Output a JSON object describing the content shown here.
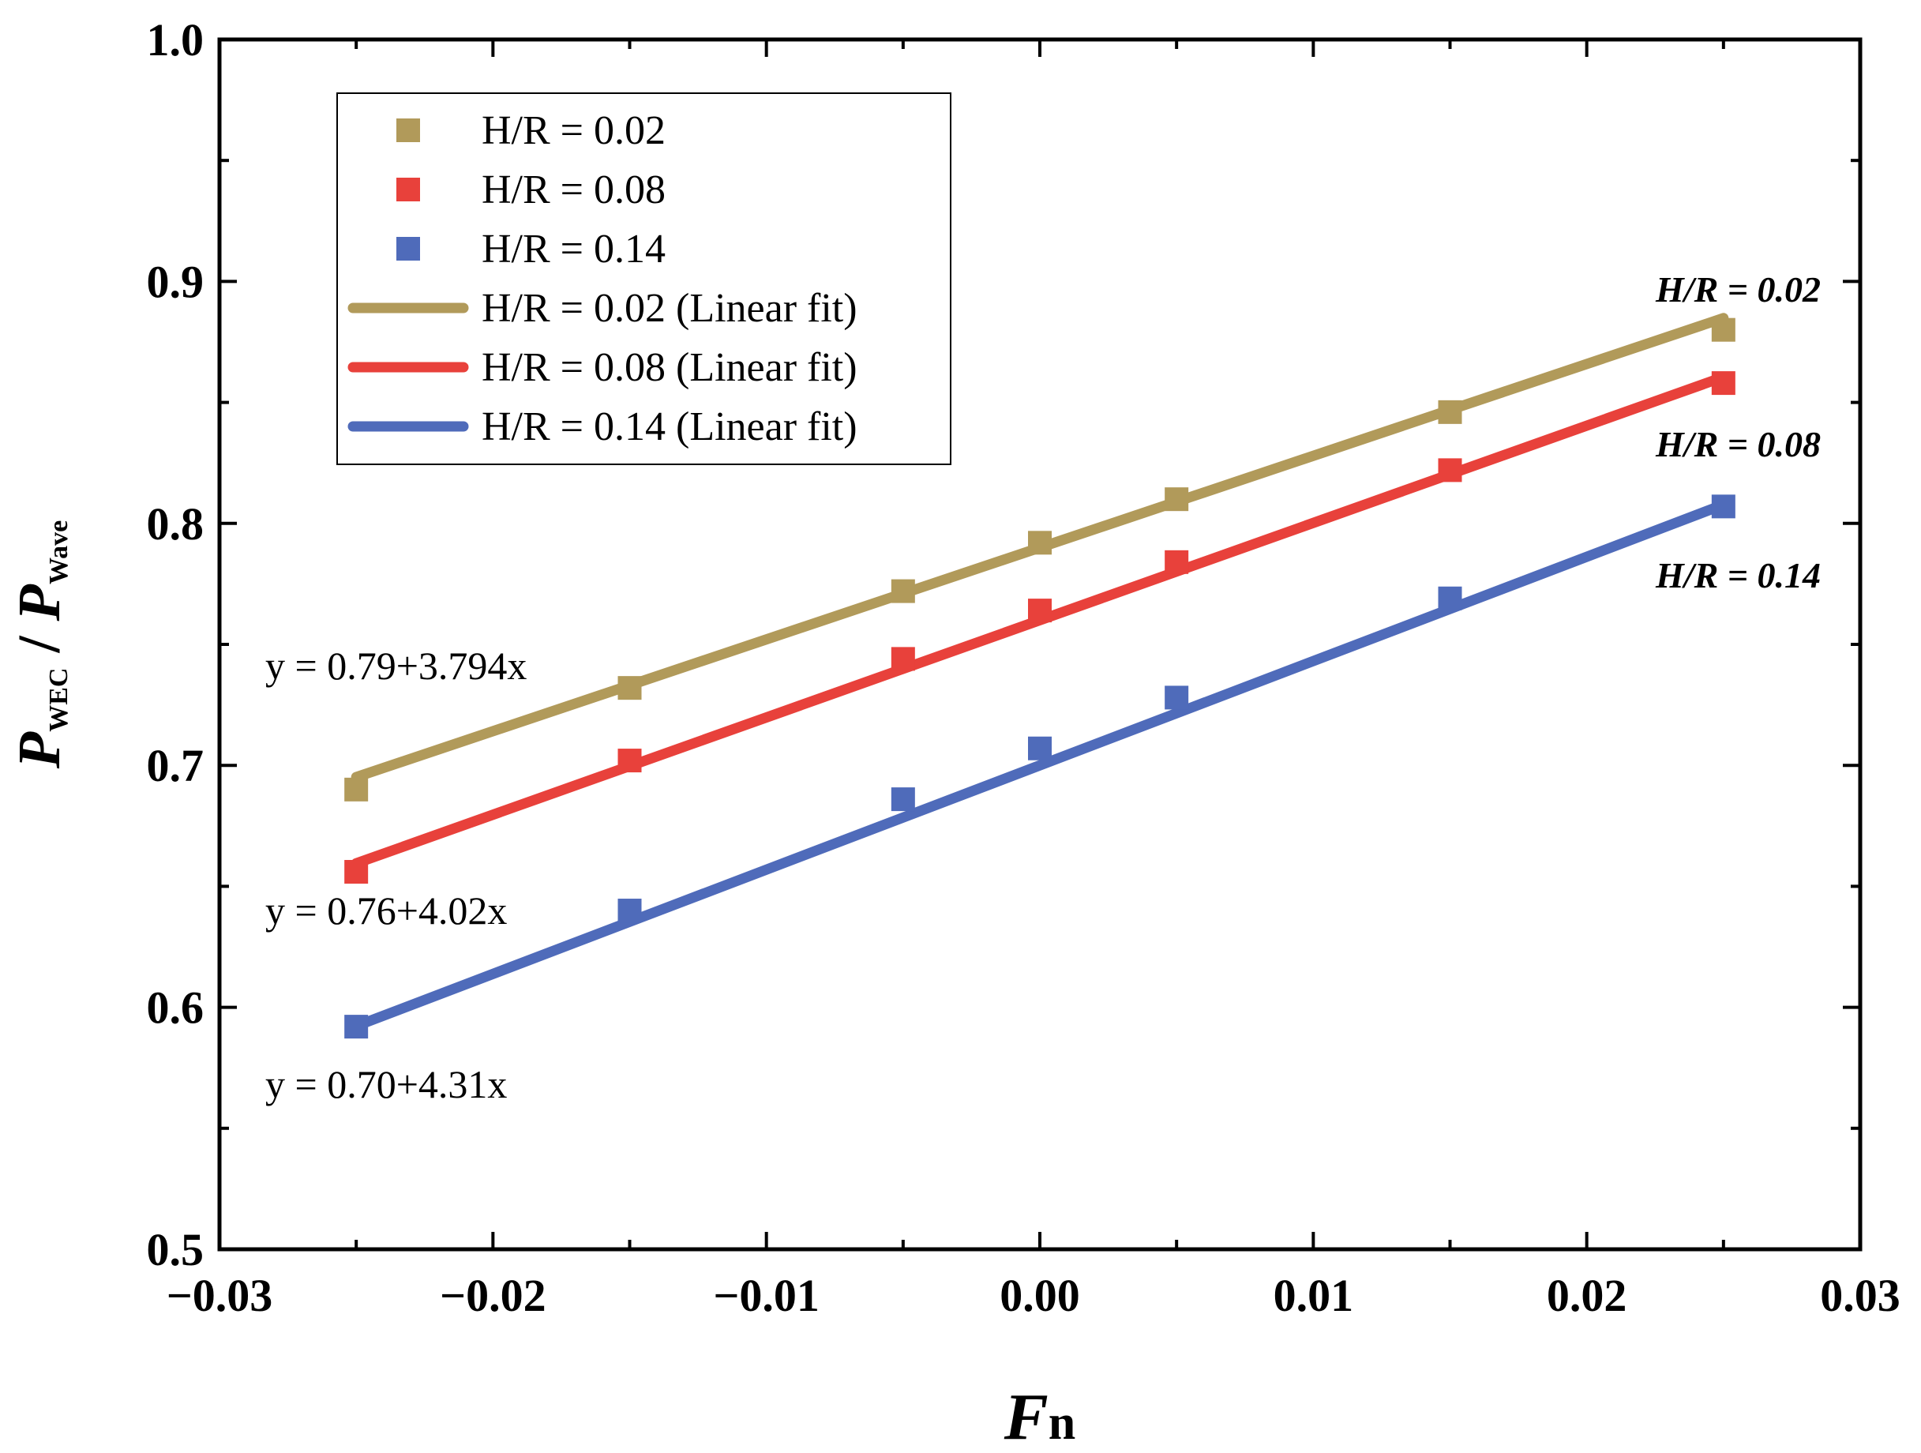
{
  "chart_data": {
    "type": "scatter",
    "xlabel_main": "F",
    "xlabel_sub": "n",
    "ylabel_num_main": "P",
    "ylabel_num_sub": "WEC",
    "ylabel_sep": " / ",
    "ylabel_den_main": "P",
    "ylabel_den_sub": "Wave",
    "xlim": [
      -0.03,
      0.03
    ],
    "ylim": [
      0.5,
      1.0
    ],
    "x_ticks": [
      -0.03,
      -0.02,
      -0.01,
      0.0,
      0.01,
      0.02,
      0.03
    ],
    "x_tick_labels": [
      "−0.03",
      "−0.02",
      "−0.01",
      "0.00",
      "0.01",
      "0.02",
      "0.03"
    ],
    "y_ticks": [
      0.5,
      0.6,
      0.7,
      0.8,
      0.9,
      1.0
    ],
    "y_tick_labels": [
      "0.5",
      "0.6",
      "0.7",
      "0.8",
      "0.9",
      "1.0"
    ],
    "x_minor_ticks": [
      -0.025,
      -0.015,
      -0.005,
      0.005,
      0.015,
      0.025
    ],
    "y_minor_ticks": [
      0.55,
      0.65,
      0.75,
      0.85,
      0.95
    ],
    "grid": false,
    "legend_position": "top-left",
    "series": [
      {
        "name": "H/R = 0.02",
        "color": "#b19a5a",
        "x": [
          -0.025,
          -0.015,
          -0.005,
          0.0,
          0.005,
          0.015,
          0.025
        ],
        "y": [
          0.69,
          0.732,
          0.772,
          0.792,
          0.81,
          0.846,
          0.88
        ],
        "fit": {
          "intercept": 0.79,
          "slope": 3.794,
          "equation": "y = 0.79+3.794x",
          "legend": "H/R = 0.02 (Linear fit)"
        },
        "end_label": "H/R = 0.02"
      },
      {
        "name": "H/R = 0.08",
        "color": "#e8413b",
        "x": [
          -0.025,
          -0.015,
          -0.005,
          0.0,
          0.005,
          0.015,
          0.025
        ],
        "y": [
          0.656,
          0.702,
          0.744,
          0.764,
          0.784,
          0.822,
          0.858
        ],
        "fit": {
          "intercept": 0.76,
          "slope": 4.02,
          "equation": "y = 0.76+4.02x",
          "legend": "H/R = 0.08 (Linear fit)"
        },
        "end_label": "H/R = 0.08"
      },
      {
        "name": "H/R = 0.14",
        "color": "#4f6bba",
        "x": [
          -0.025,
          -0.015,
          -0.005,
          0.0,
          0.005,
          0.015,
          0.025
        ],
        "y": [
          0.592,
          0.64,
          0.686,
          0.707,
          0.728,
          0.769,
          0.807
        ],
        "fit": {
          "intercept": 0.7,
          "slope": 4.31,
          "equation": "y = 0.70+4.31x",
          "legend": "H/R = 0.14 (Linear fit)"
        },
        "end_label": "H/R = 0.14"
      }
    ]
  }
}
